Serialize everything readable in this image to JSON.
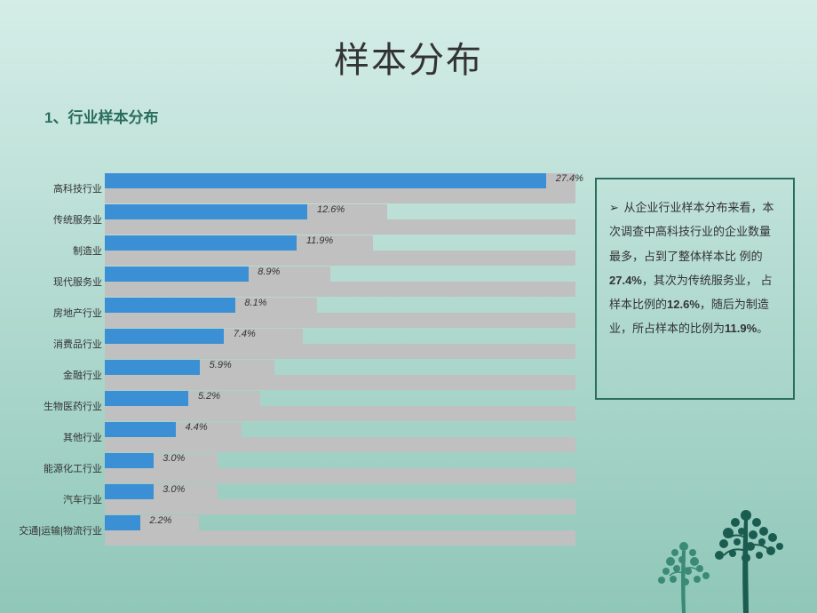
{
  "title": "样本分布",
  "subtitle": "1、行业样本分布",
  "chart": {
    "type": "bar-horizontal",
    "max_value": 27.4,
    "bar_color": "#3b8fd4",
    "track_color": "#c0c0c0",
    "label_fontsize": 11,
    "value_fontsize": 11,
    "value_fontstyle": "italic",
    "bars": [
      {
        "label": "高科技行业",
        "value": 27.4,
        "display": "27.4%",
        "gray_width": 100,
        "blue_width": 93.8
      },
      {
        "label": "传统服务业",
        "value": 12.6,
        "display": "12.6%",
        "gray_width": 60,
        "blue_width": 43.1
      },
      {
        "label": "制造业",
        "value": 11.9,
        "display": "11.9%",
        "gray_width": 57,
        "blue_width": 40.8
      },
      {
        "label": "现代服务业",
        "value": 8.9,
        "display": "8.9%",
        "gray_width": 48,
        "blue_width": 30.5
      },
      {
        "label": "房地产行业",
        "value": 8.1,
        "display": "8.1%",
        "gray_width": 45,
        "blue_width": 27.7
      },
      {
        "label": "消费品行业",
        "value": 7.4,
        "display": "7.4%",
        "gray_width": 42,
        "blue_width": 25.3
      },
      {
        "label": "金融行业",
        "value": 5.9,
        "display": "5.9%",
        "gray_width": 36,
        "blue_width": 20.2
      },
      {
        "label": "生物医药行业",
        "value": 5.2,
        "display": "5.2%",
        "gray_width": 33,
        "blue_width": 17.8
      },
      {
        "label": "其他行业",
        "value": 4.4,
        "display": "4.4%",
        "gray_width": 29,
        "blue_width": 15.1
      },
      {
        "label": "能源化工行业",
        "value": 3.0,
        "display": "3.0%",
        "gray_width": 24,
        "blue_width": 10.3
      },
      {
        "label": "汽车行业",
        "value": 3.0,
        "display": "3.0%",
        "gray_width": 24,
        "blue_width": 10.3
      },
      {
        "label": "交通|运输|物流行业",
        "value": 2.2,
        "display": "2.2%",
        "gray_width": 20,
        "blue_width": 7.5
      }
    ]
  },
  "info_box": {
    "border_color": "#2a6d5f",
    "bullet": "➢",
    "text_parts": [
      {
        "text": "从企业行业样本分布来看，本次调查中高科技行业的企业数量最多，占到了整体样本比 例的",
        "bold": false
      },
      {
        "text": "27.4%",
        "bold": true
      },
      {
        "text": "，其次为传统服务业， 占样本比例的",
        "bold": false
      },
      {
        "text": "12.6%",
        "bold": true
      },
      {
        "text": "，随后为制造业，所占样本的比例为",
        "bold": false
      },
      {
        "text": "11.9%",
        "bold": true
      },
      {
        "text": "。",
        "bold": false
      }
    ]
  },
  "decoration": {
    "tree_color_dark": "#1a5c4f",
    "tree_color_light": "#3a8a77"
  }
}
